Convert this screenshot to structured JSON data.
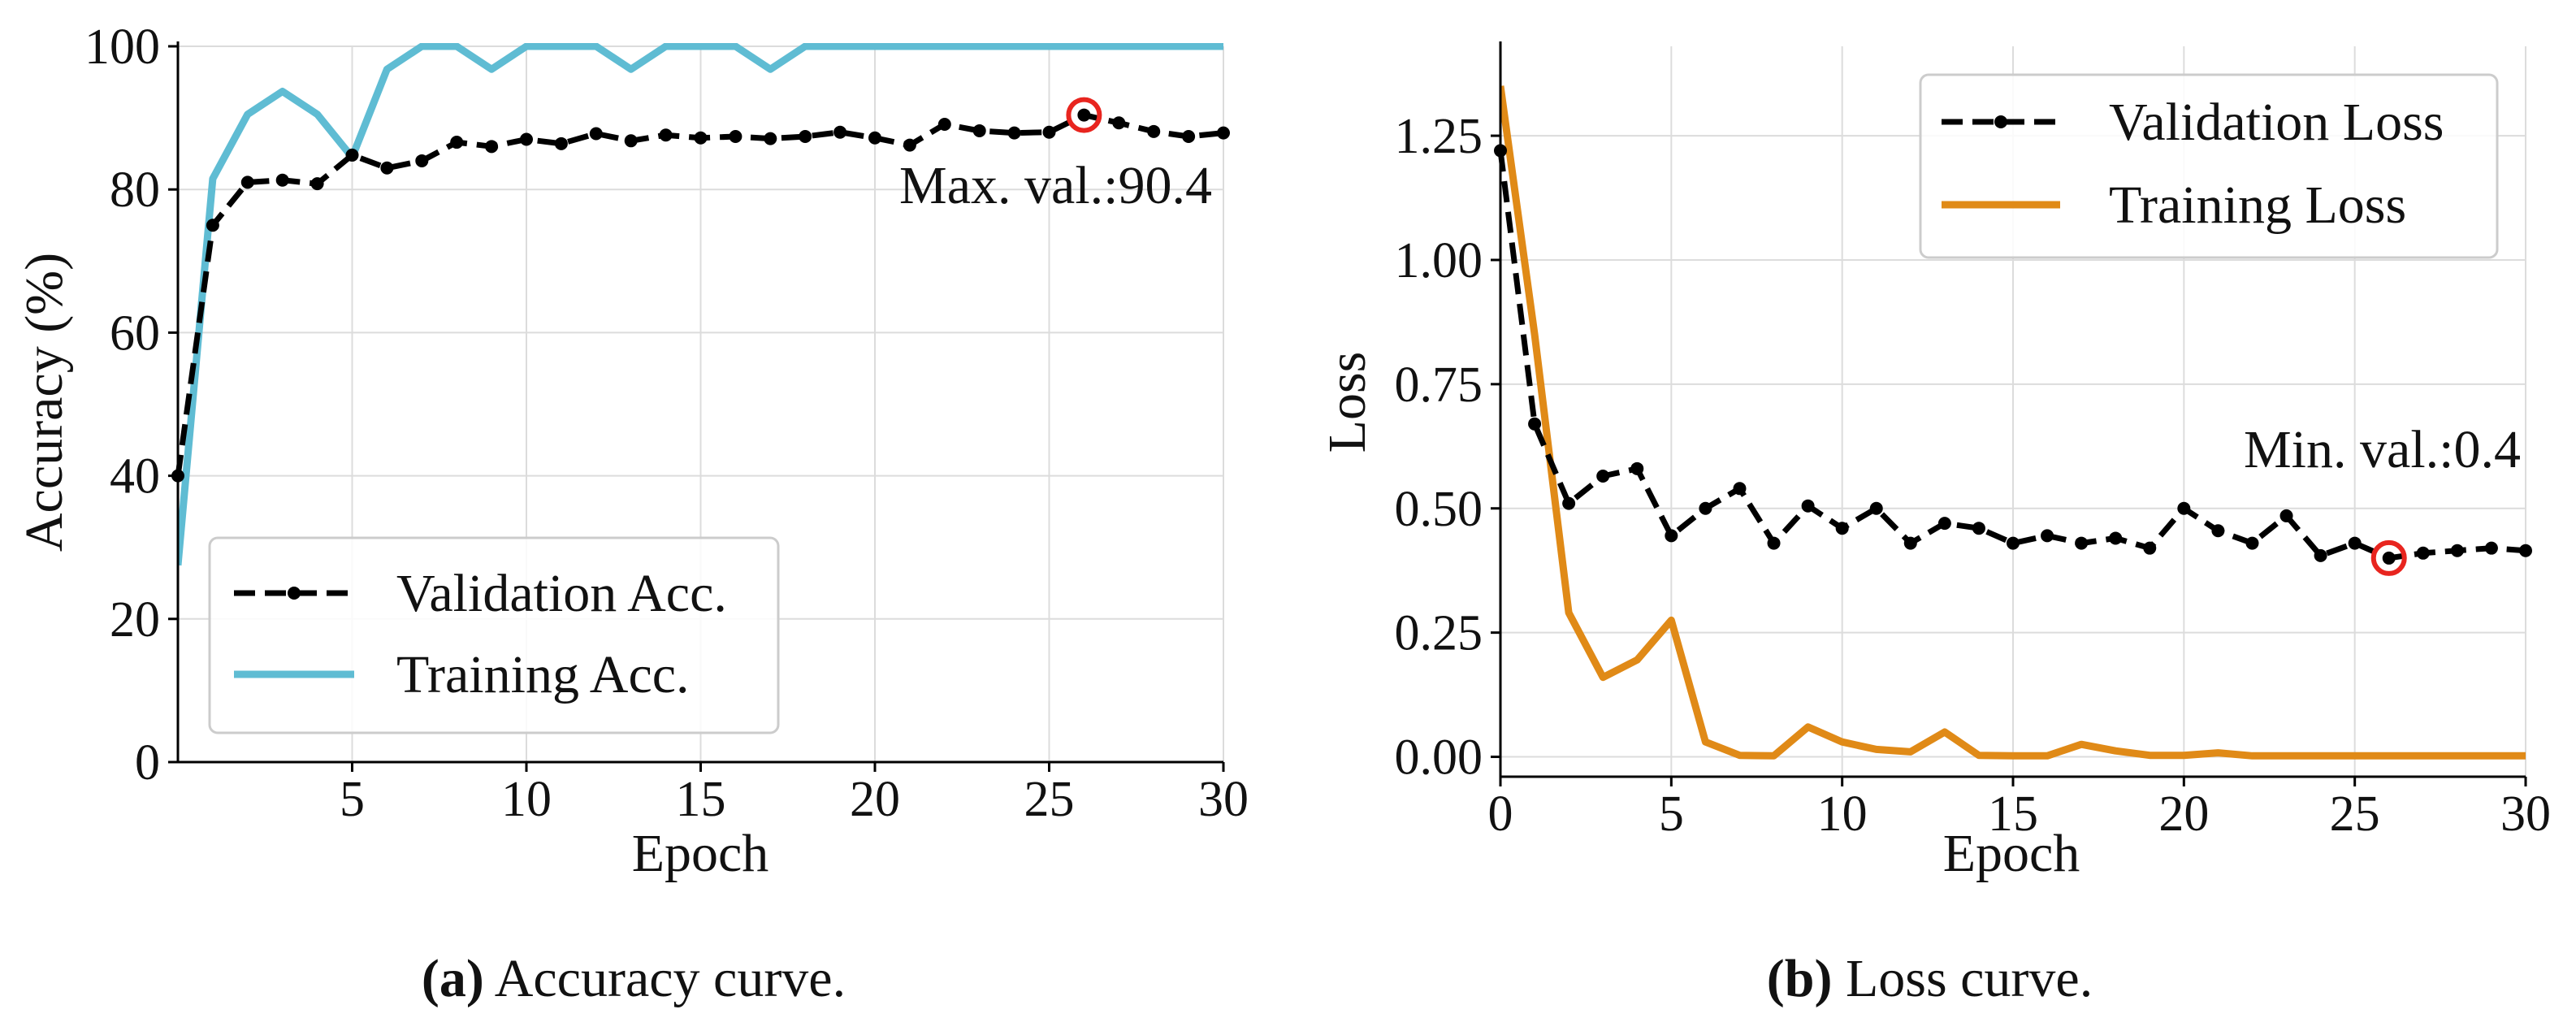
{
  "chart_data": [
    {
      "type": "line",
      "xlabel": "Epoch",
      "ylabel": "Accuracy (%)",
      "xlim": [
        0,
        30
      ],
      "ylim": [
        0,
        100
      ],
      "xticks": [
        5,
        10,
        15,
        20,
        25,
        30
      ],
      "yticks": [
        0,
        20,
        40,
        60,
        80,
        100
      ],
      "grid": true,
      "legend_position": "bottom-left",
      "x": [
        0,
        1,
        2,
        3,
        4,
        5,
        6,
        7,
        8,
        9,
        10,
        11,
        12,
        13,
        14,
        15,
        16,
        17,
        18,
        19,
        20,
        21,
        22,
        23,
        24,
        25,
        26,
        27,
        28,
        29,
        30
      ],
      "series": [
        {
          "name": "Validation Acc.",
          "color": "#000000",
          "style": "dashed-markers",
          "values": [
            40,
            75,
            81,
            81.3,
            80.8,
            84.8,
            83,
            84,
            86.6,
            86,
            87,
            86.4,
            87.8,
            86.8,
            87.6,
            87.2,
            87.4,
            87.1,
            87.4,
            88,
            87.2,
            86.2,
            89.1,
            88.2,
            87.9,
            88,
            90.4,
            89.3,
            88.1,
            87.4,
            87.9
          ]
        },
        {
          "name": "Training Acc.",
          "color": "#5fbcd3",
          "style": "solid",
          "values": [
            27.5,
            81.5,
            90.5,
            93.7,
            90.5,
            84.5,
            96.8,
            100,
            100,
            96.8,
            100,
            100,
            100,
            96.8,
            100,
            100,
            100,
            96.8,
            100,
            100,
            100,
            100,
            100,
            100,
            100,
            100,
            100,
            100,
            100,
            100,
            100
          ]
        }
      ],
      "highlight": {
        "x": 26,
        "y": 90.4,
        "color": "#e8251f"
      },
      "annotation": "Max. val.:90.4"
    },
    {
      "type": "line",
      "xlabel": "Epoch",
      "ylabel": "Loss",
      "xlim": [
        0,
        30
      ],
      "ylim": [
        -0.04,
        1.43
      ],
      "xticks": [
        0,
        5,
        10,
        15,
        20,
        25,
        30
      ],
      "yticks": [
        "0.00",
        "0.25",
        "0.50",
        "0.75",
        "1.00",
        "1.25"
      ],
      "grid": true,
      "legend_position": "top-right",
      "x": [
        0,
        1,
        2,
        3,
        4,
        5,
        6,
        7,
        8,
        9,
        10,
        11,
        12,
        13,
        14,
        15,
        16,
        17,
        18,
        19,
        20,
        21,
        22,
        23,
        24,
        25,
        26,
        27,
        28,
        29,
        30
      ],
      "series": [
        {
          "name": "Validation Loss",
          "color": "#000000",
          "style": "dashed-markers",
          "values": [
            1.22,
            0.67,
            0.51,
            0.565,
            0.58,
            0.445,
            0.5,
            0.54,
            0.43,
            0.505,
            0.46,
            0.5,
            0.43,
            0.47,
            0.46,
            0.43,
            0.445,
            0.43,
            0.44,
            0.42,
            0.5,
            0.455,
            0.43,
            0.485,
            0.405,
            0.43,
            0.4,
            0.41,
            0.415,
            0.42,
            0.415
          ]
        },
        {
          "name": "Training Loss",
          "color": "#e08a17",
          "style": "solid",
          "values": [
            1.35,
            0.85,
            0.29,
            0.16,
            0.195,
            0.275,
            0.03,
            0.003,
            0.002,
            0.06,
            0.03,
            0.015,
            0.01,
            0.05,
            0.003,
            0.002,
            0.002,
            0.025,
            0.012,
            0.003,
            0.003,
            0.008,
            0.002,
            0.002,
            0.002,
            0.002,
            0.002,
            0.002,
            0.002,
            0.002,
            0.002
          ]
        }
      ],
      "highlight": {
        "x": 26,
        "y": 0.4,
        "color": "#e8251f"
      },
      "annotation": "Min. val.:0.4"
    }
  ],
  "captions": [
    {
      "tag": "(a)",
      "text": "Accuracy curve."
    },
    {
      "tag": "(b)",
      "text": "Loss curve."
    }
  ]
}
